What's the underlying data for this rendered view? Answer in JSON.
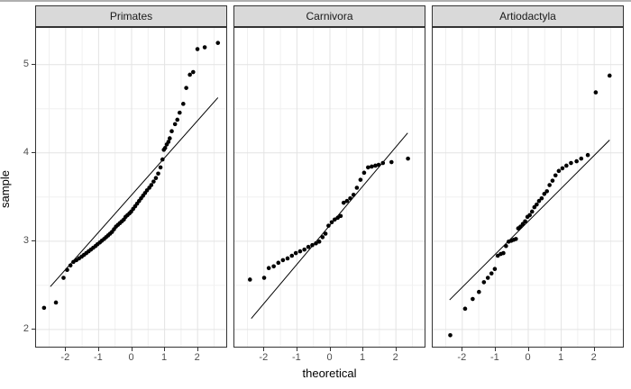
{
  "chart_data": {
    "type": "scatter",
    "subtype": "qq-plot",
    "title": "",
    "xlabel": "theoretical",
    "ylabel": "sample",
    "x_ticks": [
      -2,
      -1,
      0,
      1,
      2
    ],
    "y_ticks": [
      2,
      3,
      4,
      5
    ],
    "xlim": [
      -2.91,
      2.91
    ],
    "ylim": [
      1.79,
      5.42
    ],
    "grid": "major and minor, light gray on white panels",
    "legend_position": "none",
    "style": {
      "strip_fill": "#d9d9d9",
      "strip_border": "#333333",
      "panel_border": "#333333",
      "panel_background": "#ffffff",
      "grid_major": "#e3e3e3",
      "grid_minor": "#f0f0f0",
      "point_color": "#000000",
      "line_color": "#000000",
      "tick_label_color": "#4d4d4d",
      "axis_title_color": "#000000"
    },
    "facets": [
      {
        "label": "Primates",
        "qq_line": {
          "x1": -2.45,
          "y1": 2.48,
          "x2": 2.63,
          "y2": 4.62
        },
        "points": [
          [
            -2.64,
            2.24
          ],
          [
            -2.28,
            2.3
          ],
          [
            -2.05,
            2.58
          ],
          [
            -1.94,
            2.67
          ],
          [
            -1.84,
            2.72
          ],
          [
            -1.75,
            2.76
          ],
          [
            -1.66,
            2.78
          ],
          [
            -1.58,
            2.8
          ],
          [
            -1.5,
            2.82
          ],
          [
            -1.43,
            2.84
          ],
          [
            -1.36,
            2.86
          ],
          [
            -1.29,
            2.88
          ],
          [
            -1.22,
            2.9
          ],
          [
            -1.15,
            2.92
          ],
          [
            -1.08,
            2.94
          ],
          [
            -1.02,
            2.96
          ],
          [
            -0.95,
            2.98
          ],
          [
            -0.89,
            3.0
          ],
          [
            -0.82,
            3.02
          ],
          [
            -0.76,
            3.04
          ],
          [
            -0.7,
            3.06
          ],
          [
            -0.64,
            3.08
          ],
          [
            -0.58,
            3.1
          ],
          [
            -0.52,
            3.13
          ],
          [
            -0.46,
            3.16
          ],
          [
            -0.4,
            3.18
          ],
          [
            -0.34,
            3.2
          ],
          [
            -0.28,
            3.22
          ],
          [
            -0.22,
            3.24
          ],
          [
            -0.17,
            3.27
          ],
          [
            -0.11,
            3.29
          ],
          [
            -0.05,
            3.31
          ],
          [
            0.0,
            3.33
          ],
          [
            0.06,
            3.36
          ],
          [
            0.12,
            3.39
          ],
          [
            0.18,
            3.42
          ],
          [
            0.24,
            3.45
          ],
          [
            0.3,
            3.48
          ],
          [
            0.36,
            3.51
          ],
          [
            0.42,
            3.54
          ],
          [
            0.48,
            3.57
          ],
          [
            0.55,
            3.6
          ],
          [
            0.61,
            3.63
          ],
          [
            0.68,
            3.67
          ],
          [
            0.75,
            3.71
          ],
          [
            0.82,
            3.76
          ],
          [
            0.89,
            3.83
          ],
          [
            0.95,
            3.92
          ],
          [
            0.99,
            4.03
          ],
          [
            1.03,
            4.05
          ],
          [
            1.08,
            4.09
          ],
          [
            1.13,
            4.12
          ],
          [
            1.17,
            4.16
          ],
          [
            1.23,
            4.24
          ],
          [
            1.33,
            4.32
          ],
          [
            1.4,
            4.37
          ],
          [
            1.47,
            4.45
          ],
          [
            1.58,
            4.55
          ],
          [
            1.67,
            4.73
          ],
          [
            1.78,
            4.88
          ],
          [
            1.88,
            4.91
          ],
          [
            2.01,
            5.17
          ],
          [
            2.23,
            5.19
          ],
          [
            2.63,
            5.24
          ]
        ]
      },
      {
        "label": "Carnivora",
        "qq_line": {
          "x1": -2.37,
          "y1": 2.12,
          "x2": 2.37,
          "y2": 4.22
        },
        "points": [
          [
            -2.41,
            2.56
          ],
          [
            -1.98,
            2.58
          ],
          [
            -1.84,
            2.69
          ],
          [
            -1.69,
            2.71
          ],
          [
            -1.55,
            2.75
          ],
          [
            -1.41,
            2.78
          ],
          [
            -1.27,
            2.8
          ],
          [
            -1.14,
            2.83
          ],
          [
            -1.02,
            2.86
          ],
          [
            -0.89,
            2.88
          ],
          [
            -0.76,
            2.9
          ],
          [
            -0.64,
            2.93
          ],
          [
            -0.52,
            2.95
          ],
          [
            -0.41,
            2.97
          ],
          [
            -0.31,
            2.99
          ],
          [
            -0.21,
            3.04
          ],
          [
            -0.12,
            3.08
          ],
          [
            -0.03,
            3.17
          ],
          [
            0.07,
            3.21
          ],
          [
            0.16,
            3.24
          ],
          [
            0.25,
            3.26
          ],
          [
            0.34,
            3.28
          ],
          [
            0.43,
            3.43
          ],
          [
            0.53,
            3.45
          ],
          [
            0.63,
            3.48
          ],
          [
            0.73,
            3.52
          ],
          [
            0.83,
            3.6
          ],
          [
            0.94,
            3.69
          ],
          [
            1.05,
            3.77
          ],
          [
            1.17,
            3.83
          ],
          [
            1.28,
            3.84
          ],
          [
            1.39,
            3.85
          ],
          [
            1.49,
            3.86
          ],
          [
            1.62,
            3.88
          ],
          [
            1.88,
            3.89
          ],
          [
            2.38,
            3.93
          ]
        ]
      },
      {
        "label": "Artiodactyla",
        "qq_line": {
          "x1": -2.37,
          "y1": 2.33,
          "x2": 2.48,
          "y2": 4.14
        },
        "points": [
          [
            -2.35,
            1.93
          ],
          [
            -1.9,
            2.23
          ],
          [
            -1.67,
            2.34
          ],
          [
            -1.48,
            2.42
          ],
          [
            -1.33,
            2.53
          ],
          [
            -1.21,
            2.58
          ],
          [
            -1.1,
            2.63
          ],
          [
            -1.0,
            2.68
          ],
          [
            -0.91,
            2.83
          ],
          [
            -0.82,
            2.85
          ],
          [
            -0.74,
            2.86
          ],
          [
            -0.66,
            2.94
          ],
          [
            -0.58,
            2.99
          ],
          [
            -0.5,
            3.0
          ],
          [
            -0.43,
            3.01
          ],
          [
            -0.36,
            3.02
          ],
          [
            -0.29,
            3.14
          ],
          [
            -0.22,
            3.16
          ],
          [
            -0.15,
            3.19
          ],
          [
            -0.08,
            3.22
          ],
          [
            -0.01,
            3.27
          ],
          [
            0.06,
            3.29
          ],
          [
            0.13,
            3.33
          ],
          [
            0.2,
            3.38
          ],
          [
            0.27,
            3.41
          ],
          [
            0.34,
            3.45
          ],
          [
            0.42,
            3.48
          ],
          [
            0.5,
            3.53
          ],
          [
            0.58,
            3.56
          ],
          [
            0.66,
            3.63
          ],
          [
            0.75,
            3.68
          ],
          [
            0.84,
            3.74
          ],
          [
            0.94,
            3.79
          ],
          [
            1.05,
            3.82
          ],
          [
            1.17,
            3.85
          ],
          [
            1.31,
            3.88
          ],
          [
            1.48,
            3.9
          ],
          [
            1.62,
            3.93
          ],
          [
            1.82,
            3.97
          ],
          [
            2.06,
            4.68
          ],
          [
            2.48,
            4.87
          ]
        ]
      }
    ]
  }
}
